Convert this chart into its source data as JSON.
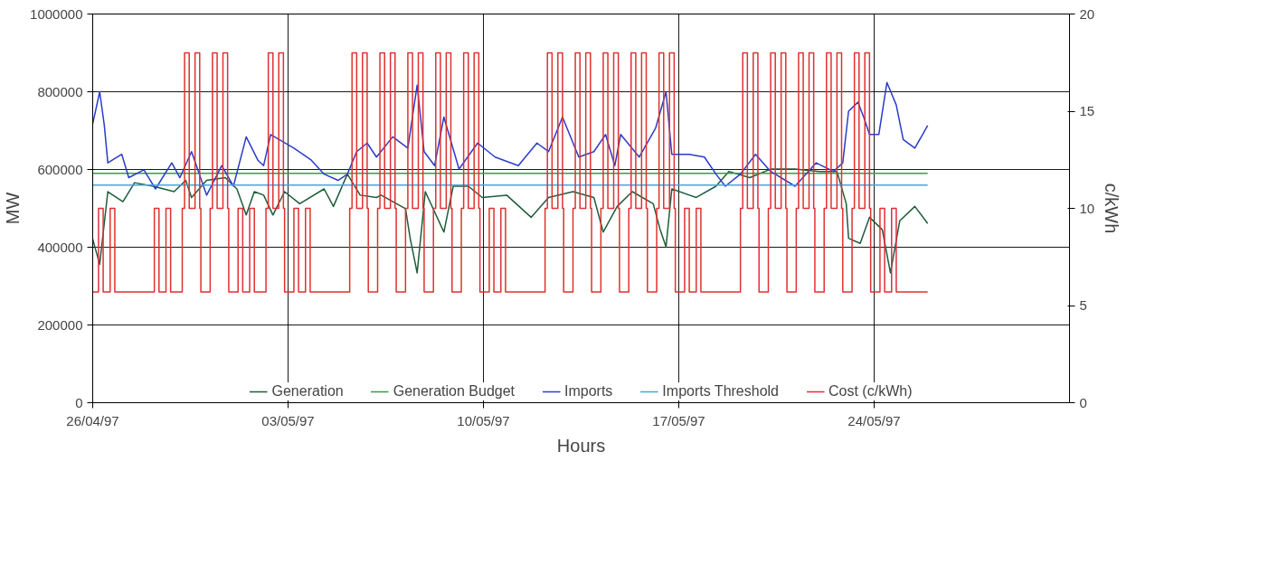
{
  "chart_data": {
    "type": "line",
    "xlabel": "Hours",
    "ylabel": "MW",
    "y2label": "c/kWh",
    "xlim": [
      "1997-04-26",
      "1997-05-31"
    ],
    "xticks": [
      {
        "value": "1997-04-26",
        "label": "26/04/97"
      },
      {
        "value": "1997-05-03",
        "label": "03/05/97"
      },
      {
        "value": "1997-05-10",
        "label": "10/05/97"
      },
      {
        "value": "1997-05-17",
        "label": "17/05/97"
      },
      {
        "value": "1997-05-24",
        "label": "24/05/97"
      }
    ],
    "ylim": [
      0,
      1000000
    ],
    "yticks": [
      0,
      200000,
      400000,
      600000,
      800000,
      1000000
    ],
    "y2lim": [
      0,
      20
    ],
    "y2ticks": [
      0,
      5,
      10,
      15,
      20
    ],
    "grid": true,
    "legend": "bottom",
    "series": [
      {
        "name": "Generation",
        "color": "#1f5c3a",
        "x": [
          "1997-04-26T00:00",
          "1997-04-26T06:00",
          "1997-04-26T13:00",
          "1997-04-27T02:00",
          "1997-04-27T12:00",
          "1997-04-28T04:00",
          "1997-04-28T22:00",
          "1997-04-29T08:00",
          "1997-04-29T13:00",
          "1997-04-30T02:00",
          "1997-04-30T18:00",
          "1997-05-01T04:00",
          "1997-05-01T12:00",
          "1997-05-01T19:00",
          "1997-05-02T03:00",
          "1997-05-02T11:00",
          "1997-05-02T21:00",
          "1997-05-03T10:00",
          "1997-05-04T07:00",
          "1997-05-04T15:00",
          "1997-05-05T03:00",
          "1997-05-05T14:00",
          "1997-05-06T04:00",
          "1997-05-06T08:00",
          "1997-05-07T05:00",
          "1997-05-07T09:00",
          "1997-05-07T15:00",
          "1997-05-07T22:00",
          "1997-05-08T14:00",
          "1997-05-08T22:00",
          "1997-05-09T11:00",
          "1997-05-09T23:00",
          "1997-05-10T20:00",
          "1997-05-11T17:00",
          "1997-05-12T08:00",
          "1997-05-13T05:00",
          "1997-05-13T23:00",
          "1997-05-14T07:00",
          "1997-05-14T19:00",
          "1997-05-15T08:00",
          "1997-05-16T02:00",
          "1997-05-16T08:00",
          "1997-05-16T13:00",
          "1997-05-16T18:00",
          "1997-05-17T15:00",
          "1997-05-18T08:00",
          "1997-05-18T19:00",
          "1997-05-19T13:00",
          "1997-05-20T07:00",
          "1997-05-21T04:00",
          "1997-05-22T01:00",
          "1997-05-22T16:00",
          "1997-05-23T00:00",
          "1997-05-23T02:00",
          "1997-05-23T12:00",
          "1997-05-23T20:00",
          "1997-05-24T07:00",
          "1997-05-24T14:00",
          "1997-05-24T22:00",
          "1997-05-25T11:00",
          "1997-05-25T22:00"
        ],
        "values": [
          421000,
          356000,
          543000,
          517000,
          566000,
          557000,
          543000,
          572000,
          528000,
          572000,
          579000,
          550000,
          483000,
          543000,
          534000,
          483000,
          543000,
          512000,
          550000,
          505000,
          588000,
          534000,
          528000,
          534000,
          499000,
          423000,
          334000,
          543000,
          439000,
          557000,
          557000,
          528000,
          534000,
          477000,
          528000,
          543000,
          528000,
          439000,
          505000,
          543000,
          512000,
          445000,
          401000,
          550000,
          528000,
          557000,
          595000,
          579000,
          601000,
          601000,
          595000,
          595000,
          512000,
          423000,
          410000,
          477000,
          445000,
          334000,
          468000,
          505000,
          461000
        ]
      },
      {
        "name": "Generation Budget",
        "color": "#3a9a50",
        "x": [
          "1997-04-26T00:00",
          "1997-05-25T22:00"
        ],
        "values": [
          590000,
          590000
        ]
      },
      {
        "name": "Imports",
        "color": "#2a3cc8",
        "x": [
          "1997-04-26T00:00",
          "1997-04-26T06:00",
          "1997-04-26T10:00",
          "1997-04-26T13:00",
          "1997-04-27T01:00",
          "1997-04-27T07:00",
          "1997-04-27T20:00",
          "1997-04-28T06:00",
          "1997-04-28T20:00",
          "1997-04-29T03:00",
          "1997-04-29T13:00",
          "1997-04-30T02:00",
          "1997-04-30T15:00",
          "1997-05-01T01:00",
          "1997-05-01T12:00",
          "1997-05-01T22:00",
          "1997-05-02T03:00",
          "1997-05-02T09:00",
          "1997-05-03T05:00",
          "1997-05-03T20:00",
          "1997-05-04T07:00",
          "1997-05-04T19:00",
          "1997-05-05T03:00",
          "1997-05-05T11:00",
          "1997-05-05T20:00",
          "1997-05-06T04:00",
          "1997-05-06T18:00",
          "1997-05-07T07:00",
          "1997-05-07T15:00",
          "1997-05-07T21:00",
          "1997-05-08T06:00",
          "1997-05-08T14:00",
          "1997-05-09T03:00",
          "1997-05-09T19:00",
          "1997-05-10T10:00",
          "1997-05-11T06:00",
          "1997-05-11T22:00",
          "1997-05-12T08:00",
          "1997-05-12T20:00",
          "1997-05-13T10:00",
          "1997-05-13T23:00",
          "1997-05-14T09:00",
          "1997-05-14T17:00",
          "1997-05-14T22:00",
          "1997-05-15T14:00",
          "1997-05-16T04:00",
          "1997-05-16T13:00",
          "1997-05-16T18:00",
          "1997-05-17T09:00",
          "1997-05-17T22:00",
          "1997-05-18T08:00",
          "1997-05-18T16:00",
          "1997-05-19T05:00",
          "1997-05-19T18:00",
          "1997-05-20T07:00",
          "1997-05-21T04:00",
          "1997-05-21T22:00",
          "1997-05-22T13:00",
          "1997-05-22T21:00",
          "1997-05-23T02:00",
          "1997-05-23T10:00",
          "1997-05-23T15:00",
          "1997-05-23T20:00",
          "1997-05-24T04:00",
          "1997-05-24T11:00",
          "1997-05-24T19:00",
          "1997-05-25T01:00",
          "1997-05-25T11:00",
          "1997-05-25T22:00"
        ],
        "values": [
          717000,
          800000,
          713000,
          617000,
          639000,
          579000,
          599000,
          550000,
          617000,
          579000,
          646000,
          534000,
          610000,
          557000,
          684000,
          624000,
          610000,
          690000,
          655000,
          624000,
          588000,
          572000,
          588000,
          646000,
          668000,
          632000,
          684000,
          655000,
          817000,
          646000,
          610000,
          735000,
          601000,
          668000,
          632000,
          610000,
          668000,
          646000,
          735000,
          632000,
          646000,
          690000,
          610000,
          690000,
          632000,
          706000,
          800000,
          639000,
          639000,
          632000,
          588000,
          557000,
          588000,
          639000,
          595000,
          557000,
          617000,
          595000,
          617000,
          750000,
          773000,
          735000,
          690000,
          690000,
          824000,
          766000,
          677000,
          655000,
          713000
        ]
      },
      {
        "name": "Imports Threshold",
        "color": "#40a8d8",
        "x": [
          "1997-04-26T00:00",
          "1997-05-25T22:00"
        ],
        "values": [
          560000,
          560000
        ]
      },
      {
        "name": "Cost (c/kWh)",
        "color": "#e03030",
        "type": "step",
        "axis": "y2",
        "x": [
          "1997-04-26T00:00",
          "1997-04-26T05:00",
          "1997-04-26T09:00",
          "1997-04-26T15:00",
          "1997-04-26T19:00",
          "1997-04-28T05:00",
          "1997-04-28T09:00",
          "1997-04-28T15:00",
          "1997-04-28T19:00",
          "1997-04-29T05:00",
          "1997-04-29T07:00",
          "1997-04-29T11:00",
          "1997-04-29T16:00",
          "1997-04-29T20:00",
          "1997-04-29T21:00",
          "1997-04-30T05:00",
          "1997-04-30T07:00",
          "1997-04-30T11:00",
          "1997-04-30T16:00",
          "1997-04-30T20:00",
          "1997-04-30T21:00",
          "1997-05-01T05:00",
          "1997-05-01T09:00",
          "1997-05-01T15:00",
          "1997-05-01T19:00",
          "1997-05-02T05:00",
          "1997-05-02T07:00",
          "1997-05-02T11:00",
          "1997-05-02T16:00",
          "1997-05-02T20:00",
          "1997-05-02T21:00",
          "1997-05-03T05:00",
          "1997-05-03T09:00",
          "1997-05-03T15:00",
          "1997-05-03T19:00",
          "1997-05-05T05:00",
          "1997-05-05T07:00",
          "1997-05-05T11:00",
          "1997-05-05T16:00",
          "1997-05-05T20:00",
          "1997-05-05T21:00",
          "1997-05-06T05:00",
          "1997-05-06T07:00",
          "1997-05-06T11:00",
          "1997-05-06T16:00",
          "1997-05-06T20:00",
          "1997-05-06T21:00",
          "1997-05-07T05:00",
          "1997-05-07T07:00",
          "1997-05-07T11:00",
          "1997-05-07T16:00",
          "1997-05-07T20:00",
          "1997-05-07T21:00",
          "1997-05-08T05:00",
          "1997-05-08T07:00",
          "1997-05-08T11:00",
          "1997-05-08T16:00",
          "1997-05-08T20:00",
          "1997-05-08T21:00",
          "1997-05-09T05:00",
          "1997-05-09T07:00",
          "1997-05-09T11:00",
          "1997-05-09T16:00",
          "1997-05-09T20:00",
          "1997-05-09T21:00",
          "1997-05-10T05:00",
          "1997-05-10T09:00",
          "1997-05-10T15:00",
          "1997-05-10T19:00",
          "1997-05-12T05:00",
          "1997-05-12T07:00",
          "1997-05-12T11:00",
          "1997-05-12T16:00",
          "1997-05-12T20:00",
          "1997-05-12T21:00",
          "1997-05-13T05:00",
          "1997-05-13T07:00",
          "1997-05-13T11:00",
          "1997-05-13T16:00",
          "1997-05-13T20:00",
          "1997-05-13T21:00",
          "1997-05-14T05:00",
          "1997-05-14T07:00",
          "1997-05-14T11:00",
          "1997-05-14T16:00",
          "1997-05-14T20:00",
          "1997-05-14T21:00",
          "1997-05-15T05:00",
          "1997-05-15T07:00",
          "1997-05-15T11:00",
          "1997-05-15T16:00",
          "1997-05-15T20:00",
          "1997-05-15T21:00",
          "1997-05-16T05:00",
          "1997-05-16T07:00",
          "1997-05-16T11:00",
          "1997-05-16T16:00",
          "1997-05-16T20:00",
          "1997-05-16T21:00",
          "1997-05-17T05:00",
          "1997-05-17T09:00",
          "1997-05-17T15:00",
          "1997-05-17T19:00",
          "1997-05-19T05:00",
          "1997-05-19T07:00",
          "1997-05-19T11:00",
          "1997-05-19T16:00",
          "1997-05-19T20:00",
          "1997-05-19T21:00",
          "1997-05-20T05:00",
          "1997-05-20T07:00",
          "1997-05-20T11:00",
          "1997-05-20T16:00",
          "1997-05-20T20:00",
          "1997-05-20T21:00",
          "1997-05-21T05:00",
          "1997-05-21T07:00",
          "1997-05-21T11:00",
          "1997-05-21T16:00",
          "1997-05-21T20:00",
          "1997-05-21T21:00",
          "1997-05-22T05:00",
          "1997-05-22T07:00",
          "1997-05-22T11:00",
          "1997-05-22T16:00",
          "1997-05-22T20:00",
          "1997-05-22T21:00",
          "1997-05-23T05:00",
          "1997-05-23T07:00",
          "1997-05-23T11:00",
          "1997-05-23T16:00",
          "1997-05-23T20:00",
          "1997-05-23T21:00",
          "1997-05-24T05:00",
          "1997-05-24T09:00",
          "1997-05-24T15:00",
          "1997-05-24T19:00",
          "1997-05-25T22:00"
        ],
        "values": [
          5.7,
          10,
          5.7,
          10,
          5.7,
          10,
          5.7,
          10,
          5.7,
          10,
          18,
          10,
          18,
          10,
          5.7,
          10,
          18,
          10,
          18,
          10,
          5.7,
          10,
          5.7,
          10,
          5.7,
          10,
          18,
          10,
          18,
          10,
          5.7,
          10,
          5.7,
          10,
          5.7,
          10,
          18,
          10,
          18,
          10,
          5.7,
          10,
          18,
          10,
          18,
          10,
          5.7,
          10,
          18,
          10,
          18,
          10,
          5.7,
          10,
          18,
          10,
          18,
          10,
          5.7,
          10,
          18,
          10,
          18,
          10,
          5.7,
          10,
          5.7,
          10,
          5.7,
          10,
          18,
          10,
          18,
          10,
          5.7,
          10,
          18,
          10,
          18,
          10,
          5.7,
          10,
          18,
          10,
          18,
          10,
          5.7,
          10,
          18,
          10,
          18,
          10,
          5.7,
          10,
          18,
          10,
          18,
          10,
          5.7,
          10,
          5.7,
          10,
          5.7,
          10,
          18,
          10,
          18,
          10,
          5.7,
          10,
          18,
          10,
          18,
          10,
          5.7,
          10,
          18,
          10,
          18,
          10,
          5.7,
          10,
          18,
          10,
          18,
          10,
          5.7,
          10,
          18,
          10,
          18,
          10,
          5.7,
          10,
          5.7,
          10,
          5.7,
          5.7
        ]
      }
    ]
  }
}
